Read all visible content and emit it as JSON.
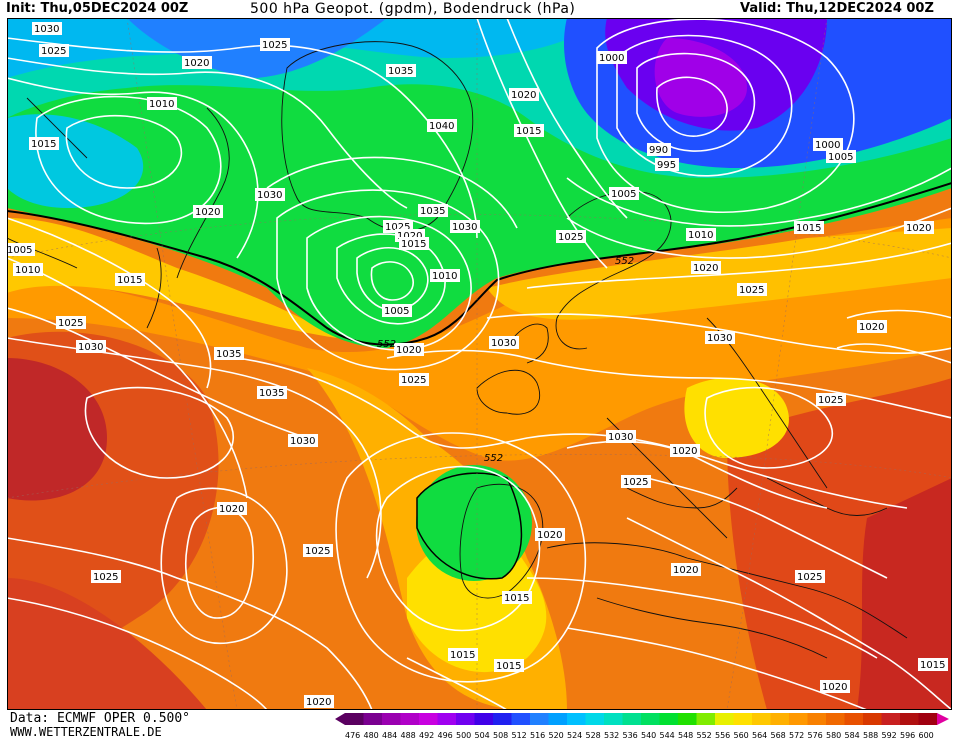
{
  "header": {
    "init": "Init: Thu,05DEC2024 00Z",
    "title": "500 hPa Geopot. (gpdm), Bodendruck (hPa)",
    "valid": "Valid: Thu,12DEC2024 00Z"
  },
  "footer": {
    "source": "Data: ECMWF OPER 0.500°",
    "website": "WWW.WETTERZENTRALE.DE"
  },
  "legend": {
    "values": [
      "476",
      "480",
      "484",
      "488",
      "492",
      "496",
      "500",
      "504",
      "508",
      "512",
      "516",
      "520",
      "524",
      "528",
      "532",
      "536",
      "540",
      "544",
      "548",
      "552",
      "556",
      "560",
      "564",
      "568",
      "572",
      "576",
      "580",
      "584",
      "588",
      "592",
      "596",
      "600"
    ],
    "colors": [
      "#5a0060",
      "#7a0090",
      "#9a00b0",
      "#b000c8",
      "#c800e0",
      "#a000f0",
      "#7000f0",
      "#4000e8",
      "#2020f0",
      "#2050ff",
      "#2080ff",
      "#00a0ff",
      "#00c0ff",
      "#00d8e8",
      "#00e0c0",
      "#00e090",
      "#00e060",
      "#00e030",
      "#20e000",
      "#80ec00",
      "#e8f000",
      "#ffe000",
      "#ffc800",
      "#ffb000",
      "#ff9800",
      "#f88000",
      "#f06800",
      "#e85000",
      "#d83800",
      "#c82020",
      "#b01010",
      "#a00010"
    ]
  },
  "pressure_labels": [
    "1030",
    "1025",
    "1020",
    "1010",
    "1015",
    "1025",
    "1035",
    "1040",
    "1030",
    "1020",
    "1035",
    "1030",
    "1025",
    "1020",
    "1015",
    "1010",
    "1005",
    "1020",
    "1015",
    "1000",
    "990",
    "995",
    "1005",
    "1000",
    "1005",
    "1025",
    "1010",
    "1015",
    "1020",
    "1005",
    "1010",
    "1015",
    "1025",
    "1030",
    "1035",
    "1030",
    "1035",
    "1020",
    "1025",
    "1030",
    "1025",
    "1020",
    "1025",
    "1030",
    "1030",
    "1025",
    "1020",
    "1020",
    "1025",
    "1020",
    "1020",
    "1015",
    "1015",
    "1015",
    "1025",
    "1020",
    "1020",
    "1025",
    "1020",
    "1015"
  ],
  "height_labels": [
    "552",
    "552",
    "552"
  ]
}
